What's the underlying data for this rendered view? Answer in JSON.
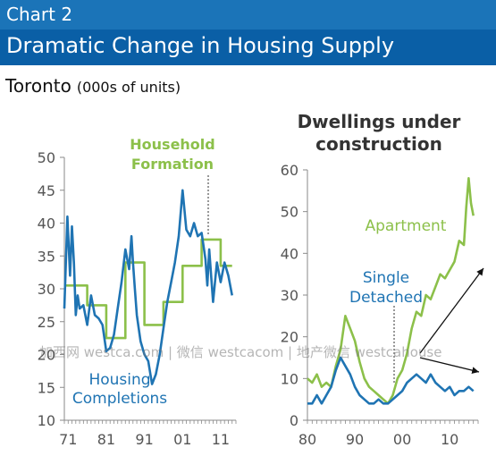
{
  "header": {
    "chart_label": "Chart 2",
    "title": "Dramatic Change in Housing Supply"
  },
  "subtitle": {
    "city": "Toronto",
    "units": "(000s of units)"
  },
  "colors": {
    "blue": "#1f74b3",
    "green": "#8cc04a",
    "axis": "#8a8a8a",
    "text": "#555555",
    "header_blue": "#0a5fa6"
  },
  "watermark": "加西网 westca.com | 微信 westcacom | 地产微信 westcahouse",
  "chart_data": [
    {
      "type": "line",
      "panel": "left",
      "x_tick_labels": [
        "71",
        "81",
        "91",
        "01",
        "11"
      ],
      "y_ticks": [
        10,
        15,
        20,
        25,
        30,
        35,
        40,
        45,
        50
      ],
      "xlim": [
        1970,
        2015
      ],
      "ylim": [
        10,
        50
      ],
      "annotations": {
        "household": "Household\nFormation",
        "completions": "Housing\nCompletions"
      },
      "series": [
        {
          "name": "Household Formation",
          "color": "#8cc04a",
          "step": true,
          "x": [
            1970,
            1976,
            1976,
            1981,
            1981,
            1986,
            1986,
            1991,
            1991,
            1996,
            1996,
            2001,
            2001,
            2006,
            2006,
            2011,
            2011,
            2014
          ],
          "y": [
            30.5,
            30.5,
            27.5,
            27.5,
            22.5,
            22.5,
            34,
            34,
            24.5,
            24.5,
            28,
            28,
            33.5,
            33.5,
            37.5,
            37.5,
            33.5,
            33.5
          ]
        },
        {
          "name": "Housing Completions",
          "color": "#1f74b3",
          "x": [
            1970,
            1970.8,
            1971.5,
            1972,
            1972.5,
            1973,
            1973.5,
            1974,
            1975,
            1976,
            1977,
            1978,
            1979,
            1980,
            1981,
            1982,
            1983,
            1984,
            1985,
            1986,
            1987,
            1987.6,
            1988,
            1988.5,
            1989,
            1990,
            1991,
            1992,
            1993,
            1994,
            1995,
            1996,
            1997,
            1998,
            1999,
            2000,
            2001,
            2002,
            2003,
            2004,
            2005,
            2006,
            2007,
            2007.5,
            2008,
            2009,
            2010,
            2011,
            2012,
            2013,
            2014
          ],
          "y": [
            27,
            41,
            32,
            39.5,
            34,
            26,
            29,
            27,
            27.5,
            24.5,
            29,
            26,
            25.5,
            24.5,
            20.5,
            21,
            23,
            27,
            31,
            36,
            33,
            38,
            34,
            30,
            26,
            22,
            20,
            19,
            15.5,
            17,
            20,
            24,
            28,
            31,
            34,
            38,
            45,
            39,
            38,
            40,
            38,
            38.5,
            34.5,
            30.5,
            36,
            28,
            34,
            31,
            34,
            32,
            29
          ]
        }
      ]
    },
    {
      "type": "line",
      "panel": "right",
      "title": "Dwellings under\nconstruction",
      "x_tick_labels": [
        "80",
        "90",
        "00",
        "10"
      ],
      "y_ticks": [
        0,
        10,
        20,
        30,
        40,
        50,
        60
      ],
      "xlim": [
        1980,
        2016
      ],
      "ylim": [
        0,
        60
      ],
      "annotations": {
        "apartment": "Apartment",
        "single": "Single\nDetached"
      },
      "series": [
        {
          "name": "Apartment",
          "color": "#8cc04a",
          "x": [
            1980,
            1981,
            1982,
            1983,
            1984,
            1985,
            1986,
            1987,
            1988,
            1989,
            1990,
            1991,
            1992,
            1993,
            1994,
            1995,
            1996,
            1997,
            1998,
            1999,
            2000,
            2001,
            2002,
            2003,
            2004,
            2005,
            2006,
            2007,
            2008,
            2009,
            2010,
            2011,
            2012,
            2013,
            2013.5,
            2014,
            2014.5,
            2015
          ],
          "y": [
            10,
            9,
            11,
            8,
            9,
            8,
            13,
            17,
            25,
            22,
            19,
            14,
            10,
            8,
            7,
            6,
            5,
            4,
            6,
            10,
            12,
            16,
            22,
            26,
            25,
            30,
            29,
            32,
            35,
            34,
            36,
            38,
            43,
            42,
            51,
            58,
            52,
            49
          ]
        },
        {
          "name": "Single Detached",
          "color": "#1f74b3",
          "x": [
            1980,
            1981,
            1982,
            1983,
            1984,
            1985,
            1986,
            1987,
            1988,
            1989,
            1990,
            1991,
            1992,
            1993,
            1994,
            1995,
            1996,
            1997,
            1998,
            1999,
            2000,
            2001,
            2002,
            2003,
            2004,
            2005,
            2006,
            2007,
            2008,
            2009,
            2010,
            2011,
            2012,
            2013,
            2014,
            2015
          ],
          "y": [
            4,
            4,
            6,
            4,
            6,
            8,
            12,
            15,
            13,
            11,
            8,
            6,
            5,
            4,
            4,
            5,
            4,
            4,
            5,
            6,
            7,
            9,
            10,
            11,
            10,
            9,
            11,
            9,
            8,
            7,
            8,
            6,
            7,
            7,
            8,
            7
          ]
        }
      ]
    }
  ]
}
